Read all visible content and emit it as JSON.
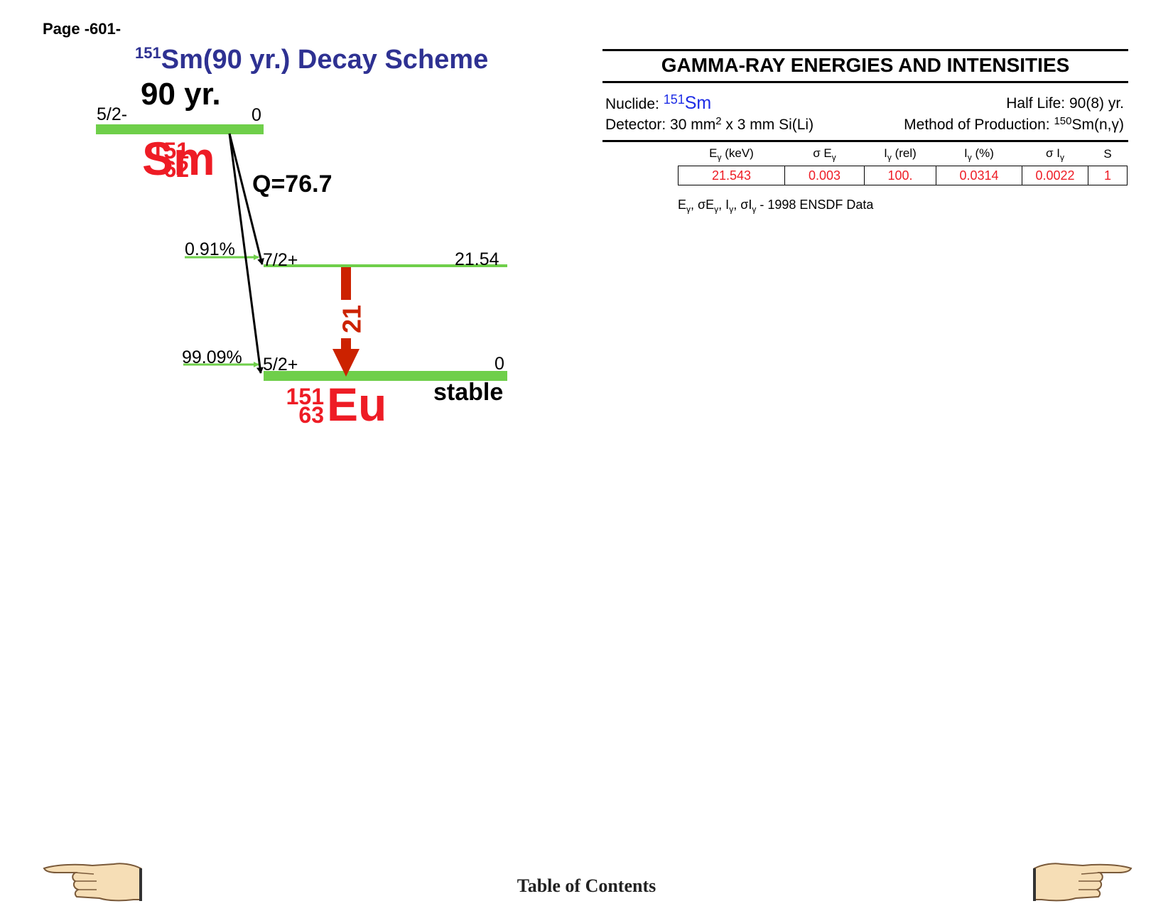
{
  "page": {
    "number_label": "Page -601-"
  },
  "scheme": {
    "title_mass": "151",
    "title_rest": "Sm(90 yr.) Decay Scheme",
    "parent_halflife": "90 yr.",
    "parent_level": {
      "spin": "5/2-",
      "energy": "0"
    },
    "parent_nuclide": {
      "mass": "151",
      "z": "62",
      "symbol": "Sm"
    },
    "q_value": "Q=76.7",
    "levels": [
      {
        "spin": "7/2+",
        "energy": "21.54",
        "branch": "0.91%"
      },
      {
        "spin": "5/2+",
        "energy": "0",
        "branch": "99.09%"
      }
    ],
    "gamma_label": "21",
    "daughter_nuclide": {
      "mass": "151",
      "z": "63",
      "symbol": "Eu"
    },
    "daughter_status": "stable",
    "colors": {
      "level": "#6fcf4a",
      "nuclide": "#ee1c25",
      "title": "#2e3192",
      "gamma_arrow": "#cc2200"
    }
  },
  "gamma_panel": {
    "heading": "GAMMA-RAY ENERGIES AND INTENSITIES",
    "nuclide_label": "Nuclide: ",
    "nuclide_mass": "151",
    "nuclide_symbol": "Sm",
    "half_life": "Half Life: 90(8) yr.",
    "detector_pre": "Detector: 30 mm",
    "detector_sup": "2",
    "detector_post": " x 3 mm Si(Li)",
    "method_pre": "Method of Production: ",
    "method_sup": "150",
    "method_post": "Sm(n,γ)",
    "columns": [
      {
        "main": "E",
        "sub": "γ",
        "unit": " (keV)"
      },
      {
        "main": "σ E",
        "sub": "γ",
        "unit": ""
      },
      {
        "main": "I",
        "sub": "γ",
        "unit": " (rel)"
      },
      {
        "main": "I",
        "sub": "γ",
        "unit": " (%)"
      },
      {
        "main": "σ I",
        "sub": "γ",
        "unit": ""
      },
      {
        "main": "S",
        "sub": "",
        "unit": ""
      }
    ],
    "rows": [
      [
        "21.543",
        "0.003",
        "100.",
        "0.0314",
        "0.0022",
        "1"
      ]
    ],
    "source_note": {
      "sym_e": "E",
      "sym_se": "σE",
      "sym_i": "I",
      "sym_si": "σI",
      "sub": "γ",
      "sep": ", ",
      "dash": " - ",
      "text": "1998 ENSDF Data"
    }
  },
  "footer": {
    "toc": "Table of Contents",
    "prev_icon": "hand-pointing-left-icon",
    "next_icon": "hand-pointing-right-icon"
  }
}
